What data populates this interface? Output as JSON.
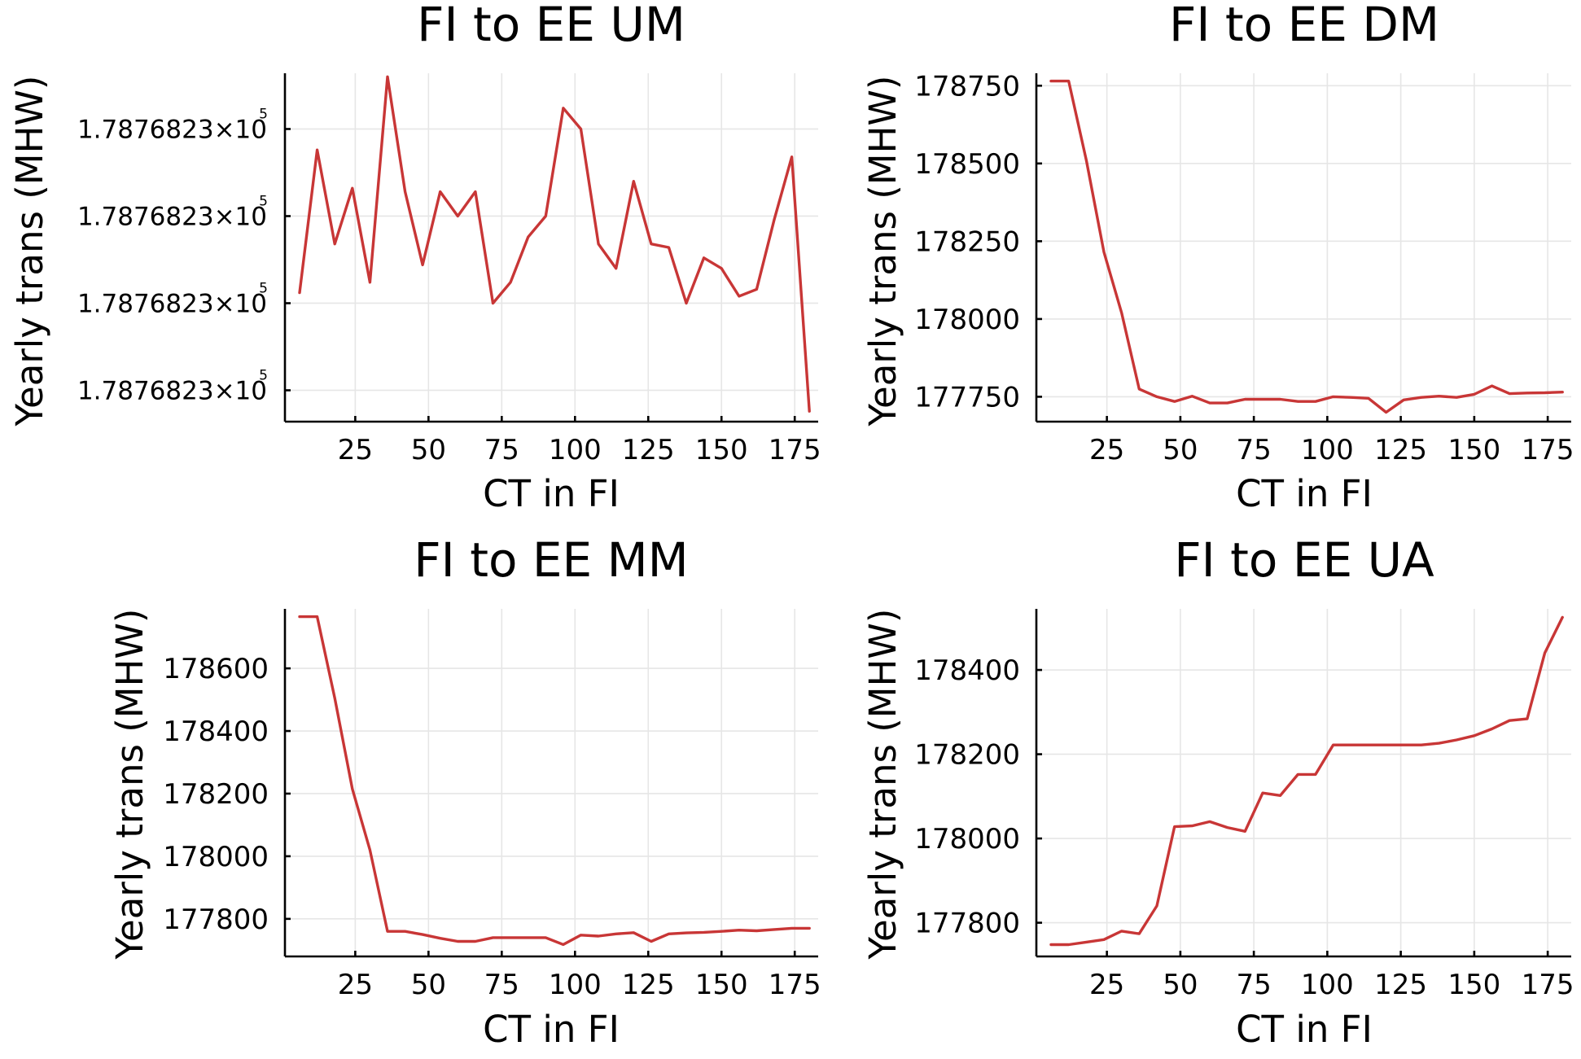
{
  "colors": {
    "series": "#c83636",
    "grid": "#e6e6e6",
    "axis": "#000000",
    "background": "#ffffff"
  },
  "chart_data": [
    {
      "type": "line",
      "title": "FI to EE UM",
      "xlabel": "CT in FI",
      "ylabel": "Yearly trans (MHW)",
      "grid": true,
      "xlim": [
        1,
        183
      ],
      "ylim": [
        0.0,
        1.0
      ],
      "x_ticks": [
        25,
        50,
        75,
        100,
        125,
        150,
        175
      ],
      "y_ticks": [
        0.09,
        0.34,
        0.59,
        0.84
      ],
      "y_tick_labels": [
        "1.7876823×10",
        "1.7876823×10",
        "1.7876823×10",
        "1.7876823×10"
      ],
      "y_tick_exponent": "5",
      "y_values_note_unit": "relative position between min and max (values all print as 1.7876823×10^5)",
      "series": [
        {
          "x": [
            6,
            12,
            18,
            24,
            30,
            36,
            42,
            48,
            54,
            60,
            66,
            72,
            78,
            84,
            90,
            96,
            102,
            108,
            114,
            120,
            126,
            132,
            138,
            144,
            150,
            156,
            162,
            168,
            174,
            180
          ],
          "values": [
            0.37,
            0.78,
            0.51,
            0.67,
            0.4,
            0.99,
            0.66,
            0.45,
            0.66,
            0.59,
            0.66,
            0.34,
            0.4,
            0.53,
            0.59,
            0.9,
            0.84,
            0.51,
            0.44,
            0.69,
            0.51,
            0.5,
            0.34,
            0.47,
            0.44,
            0.36,
            0.38,
            0.58,
            0.76,
            0.03
          ]
        }
      ]
    },
    {
      "type": "line",
      "title": "FI to EE DM",
      "xlabel": "CT in FI",
      "ylabel": "Yearly trans (MHW)",
      "grid": true,
      "xlim": [
        1,
        183
      ],
      "ylim": [
        177670,
        178790
      ],
      "x_ticks": [
        25,
        50,
        75,
        100,
        125,
        150,
        175
      ],
      "y_ticks": [
        177750,
        178000,
        178250,
        178500,
        178750
      ],
      "series": [
        {
          "x": [
            6,
            12,
            18,
            24,
            30,
            36,
            42,
            48,
            54,
            60,
            66,
            72,
            78,
            84,
            90,
            96,
            102,
            108,
            114,
            120,
            126,
            132,
            138,
            144,
            150,
            156,
            162,
            168,
            174,
            180
          ],
          "values": [
            178765,
            178765,
            178510,
            178215,
            178020,
            177775,
            177750,
            177735,
            177752,
            177730,
            177730,
            177742,
            177742,
            177742,
            177735,
            177735,
            177750,
            177748,
            177745,
            177700,
            177740,
            177748,
            177752,
            177748,
            177758,
            177785,
            177760,
            177762,
            177763,
            177765
          ]
        }
      ]
    },
    {
      "type": "line",
      "title": "FI to EE MM",
      "xlabel": "CT in FI",
      "ylabel": "Yearly trans (MHW)",
      "grid": true,
      "xlim": [
        1,
        183
      ],
      "ylim": [
        177680,
        178790
      ],
      "x_ticks": [
        25,
        50,
        75,
        100,
        125,
        150,
        175
      ],
      "y_ticks": [
        177800,
        178000,
        178200,
        178400,
        178600
      ],
      "series": [
        {
          "x": [
            6,
            12,
            18,
            24,
            30,
            36,
            42,
            48,
            54,
            60,
            66,
            72,
            78,
            84,
            90,
            96,
            102,
            108,
            114,
            120,
            126,
            132,
            138,
            144,
            150,
            156,
            162,
            168,
            174,
            180
          ],
          "values": [
            178765,
            178765,
            178505,
            178215,
            178020,
            177760,
            177760,
            177750,
            177738,
            177728,
            177728,
            177740,
            177740,
            177740,
            177740,
            177718,
            177748,
            177745,
            177752,
            177756,
            177728,
            177752,
            177755,
            177757,
            177760,
            177764,
            177762,
            177766,
            177770,
            177770
          ]
        }
      ]
    },
    {
      "type": "line",
      "title": "FI to EE UA",
      "xlabel": "CT in FI",
      "ylabel": "Yearly trans (MHW)",
      "grid": true,
      "xlim": [
        1,
        183
      ],
      "ylim": [
        177720,
        178545
      ],
      "x_ticks": [
        25,
        50,
        75,
        100,
        125,
        150,
        175
      ],
      "y_ticks": [
        177800,
        178000,
        178200,
        178400
      ],
      "series": [
        {
          "x": [
            6,
            12,
            18,
            24,
            30,
            36,
            42,
            48,
            54,
            60,
            66,
            72,
            78,
            84,
            90,
            96,
            102,
            108,
            114,
            120,
            126,
            132,
            138,
            144,
            150,
            156,
            162,
            168,
            174,
            180
          ],
          "values": [
            177748,
            177748,
            177754,
            177760,
            177780,
            177774,
            177840,
            178028,
            178030,
            178040,
            178026,
            178017,
            178108,
            178102,
            178152,
            178152,
            178222,
            178222,
            178222,
            178222,
            178222,
            178222,
            178226,
            178234,
            178244,
            178260,
            178280,
            178284,
            178440,
            178525
          ]
        }
      ]
    }
  ]
}
